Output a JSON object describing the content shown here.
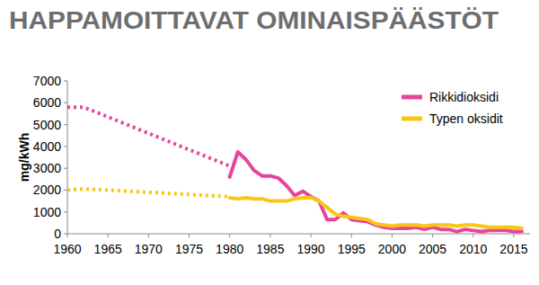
{
  "chart_data": {
    "type": "line",
    "title": "HAPPAMOITTAVAT OMINAISPÄÄSTÖT",
    "y_label": "mg/kWh",
    "xlim": [
      1960,
      2017
    ],
    "xticks": [
      1960,
      1965,
      1970,
      1975,
      1980,
      1985,
      1990,
      1995,
      2000,
      2005,
      2010,
      2015
    ],
    "ylim": [
      0,
      7000
    ],
    "yticks": [
      0,
      1000,
      2000,
      3000,
      4000,
      5000,
      6000,
      7000
    ],
    "grid": false,
    "legend": "top-right",
    "series": [
      {
        "color": "#e8449a",
        "line_style": "dotted",
        "x": [
          1960,
          1962,
          1980
        ],
        "values": [
          5800,
          5800,
          3100
        ]
      },
      {
        "color": "#f9c616",
        "line_style": "dotted",
        "x": [
          1960,
          1962,
          1965,
          1970,
          1975,
          1980
        ],
        "values": [
          2000,
          2050,
          2000,
          1900,
          1800,
          1700
        ]
      },
      {
        "name": "Rikkidioksidi",
        "color": "#e8449a",
        "line_style": "solid",
        "x": [
          1980,
          1981,
          1982,
          1983,
          1984,
          1985,
          1986,
          1987,
          1988,
          1989,
          1990,
          1991,
          1992,
          1993,
          1994,
          1995,
          1996,
          1997,
          1998,
          1999,
          2000,
          2001,
          2002,
          2003,
          2004,
          2005,
          2006,
          2007,
          2008,
          2009,
          2010,
          2011,
          2012,
          2013,
          2014,
          2015,
          2016
        ],
        "values": [
          2600,
          3750,
          3400,
          2900,
          2650,
          2650,
          2550,
          2200,
          1750,
          1950,
          1700,
          1500,
          650,
          650,
          950,
          650,
          600,
          550,
          400,
          300,
          250,
          250,
          250,
          300,
          200,
          300,
          200,
          200,
          100,
          200,
          150,
          100,
          150,
          150,
          150,
          100,
          100
        ]
      },
      {
        "name": "Typen oksidit",
        "color": "#f9c616",
        "line_style": "solid",
        "x": [
          1980,
          1981,
          1982,
          1983,
          1984,
          1985,
          1986,
          1987,
          1988,
          1989,
          1990,
          1991,
          1992,
          1993,
          1994,
          1995,
          1996,
          1997,
          1998,
          1999,
          2000,
          2001,
          2002,
          2003,
          2004,
          2005,
          2006,
          2007,
          2008,
          2009,
          2010,
          2011,
          2012,
          2013,
          2014,
          2015,
          2016
        ],
        "values": [
          1650,
          1600,
          1650,
          1600,
          1600,
          1500,
          1500,
          1500,
          1600,
          1650,
          1650,
          1500,
          1200,
          900,
          800,
          750,
          700,
          650,
          450,
          400,
          350,
          400,
          400,
          400,
          350,
          400,
          400,
          400,
          350,
          400,
          400,
          350,
          300,
          300,
          300,
          300,
          250
        ]
      }
    ]
  }
}
